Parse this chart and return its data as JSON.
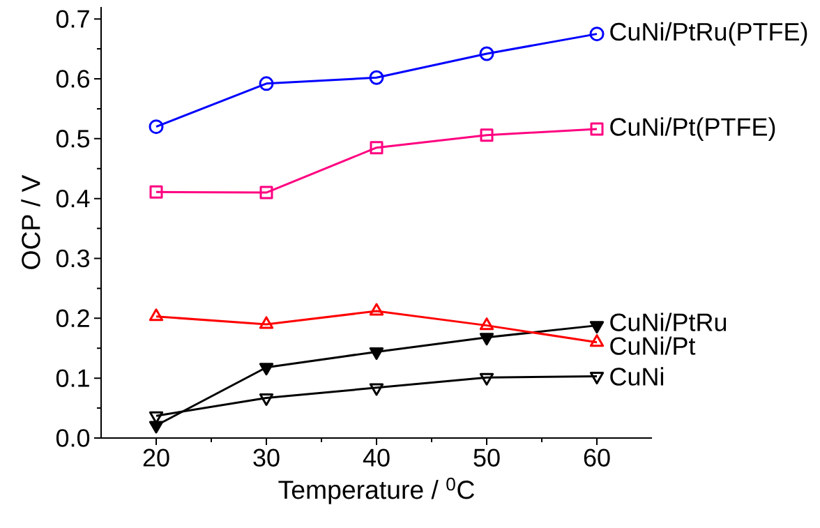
{
  "chart_data": {
    "type": "line",
    "xlabel": "Temperature / $^{0}$C",
    "ylabel": "OCP / V",
    "x": [
      20,
      30,
      40,
      50,
      60
    ],
    "xlim": [
      15,
      65
    ],
    "xticks": [
      20,
      30,
      40,
      50,
      60
    ],
    "ylim": [
      0,
      0.72
    ],
    "yticks": [
      {
        "value": 0,
        "label": "0.0"
      },
      0.1,
      0.2,
      0.3,
      0.4,
      0.5,
      0.6,
      0.7
    ],
    "line_style": "solid",
    "series": [
      {
        "name": "CuNi/PtRu(PTFE)",
        "color": "#0000ff",
        "marker": "circle",
        "values": [
          0.52,
          0.592,
          0.602,
          0.642,
          0.675
        ]
      },
      {
        "name": "CuNi/Pt(PTFE)",
        "color": "#ff0080",
        "marker": "square",
        "values": [
          0.411,
          0.41,
          0.485,
          0.506,
          0.516
        ]
      },
      {
        "name": "CuNi/PtRu",
        "color": "#000000",
        "marker": "triangle_down_filled",
        "values": [
          0.021,
          0.118,
          0.144,
          0.168,
          0.188
        ]
      },
      {
        "name": "CuNi/Pt",
        "color": "#ff0000",
        "marker": "triangle",
        "values": [
          0.203,
          0.19,
          0.212,
          0.188,
          0.16
        ]
      },
      {
        "name": "CuNi",
        "color": "#000000",
        "marker": "triangle_down",
        "values": [
          0.037,
          0.067,
          0.084,
          0.101,
          0.103
        ]
      }
    ]
  }
}
